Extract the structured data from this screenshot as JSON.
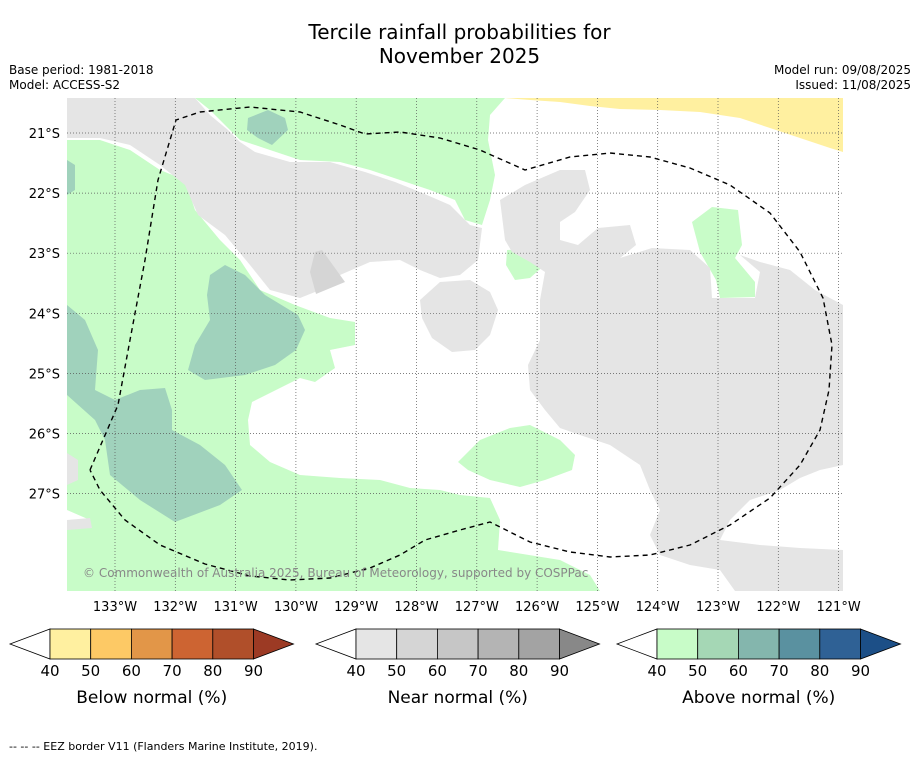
{
  "title_line1": "Tercile rainfall probabilities for",
  "title_line2": "November 2025",
  "meta_left": {
    "base_period": "Base period: 1981-2018",
    "model": "Model: ACCESS-S2"
  },
  "meta_right": {
    "model_run": "Model run: 09/08/2025",
    "issued": "Issued: 11/08/2025"
  },
  "copyright": "© Commonwealth of Australia 2025, Bureau of Meteorology, supported by COSPPac",
  "lat_labels": [
    "21°S",
    "22°S",
    "23°S",
    "24°S",
    "25°S",
    "26°S",
    "27°S"
  ],
  "lon_labels": [
    "133°W",
    "132°W",
    "131°W",
    "130°W",
    "129°W",
    "128°W",
    "127°W",
    "126°W",
    "125°W",
    "124°W",
    "123°W",
    "122°W",
    "121°W"
  ],
  "colors": {
    "below": [
      "#fff0a0",
      "#fdc965",
      "#e29648",
      "#cd6432",
      "#b04f2a",
      "#9c3a24"
    ],
    "near": [
      "#e5e5e5",
      "#d5d5d5",
      "#c6c6c6",
      "#b4b4b4",
      "#a3a3a3",
      "#888888"
    ],
    "above": [
      "#c8fcc8",
      "#a5d7b5",
      "#84b6ad",
      "#5a91a0",
      "#2f6195",
      "#1c4f87"
    ]
  },
  "colorbars": [
    {
      "key": "below",
      "title": "Below normal (%)",
      "ticks": [
        "40",
        "50",
        "60",
        "70",
        "80",
        "90"
      ]
    },
    {
      "key": "near",
      "title": "Near normal (%)",
      "ticks": [
        "40",
        "50",
        "60",
        "70",
        "80",
        "90"
      ]
    },
    {
      "key": "above",
      "title": "Above normal (%)",
      "ticks": [
        "40",
        "50",
        "60",
        "70",
        "80",
        "90"
      ]
    }
  ],
  "footer": "--  --  -- EEZ border V11 (Flanders Marine Institute, 2019)."
}
